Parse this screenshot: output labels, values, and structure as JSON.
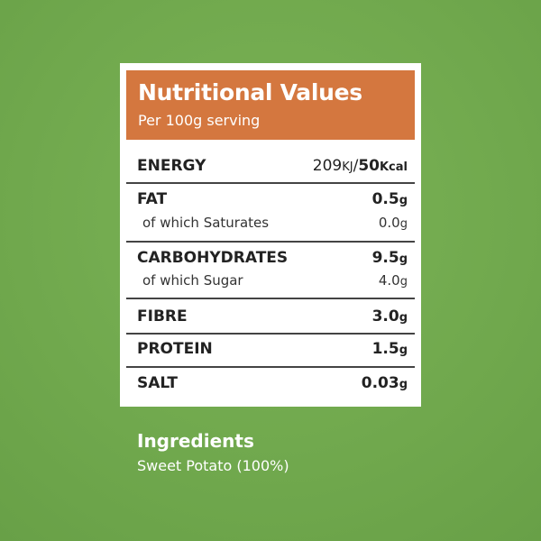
{
  "header": {
    "title": "Nutritional Values",
    "subtitle": "Per 100g serving"
  },
  "energy": {
    "label": "ENERGY",
    "kj": "209",
    "kj_unit": "KJ",
    "separator": "/",
    "kcal": "50",
    "kcal_unit": "Kcal"
  },
  "rows": [
    {
      "label": "FAT",
      "value": "0.5",
      "unit": "g",
      "sub_label": "of which Saturates",
      "sub_value": "0.0",
      "sub_unit": "g"
    },
    {
      "label": "CARBOHYDRATES",
      "value": "9.5",
      "unit": "g",
      "sub_label": "of which Sugar",
      "sub_value": "4.0",
      "sub_unit": "g"
    },
    {
      "label": "FIBRE",
      "value": "3.0",
      "unit": "g"
    },
    {
      "label": "PROTEIN",
      "value": "1.5",
      "unit": "g"
    },
    {
      "label": "SALT",
      "value": "0.03",
      "unit": "g"
    }
  ],
  "ingredients": {
    "title": "Ingredients",
    "text": "Sweet Potato (100%)"
  }
}
